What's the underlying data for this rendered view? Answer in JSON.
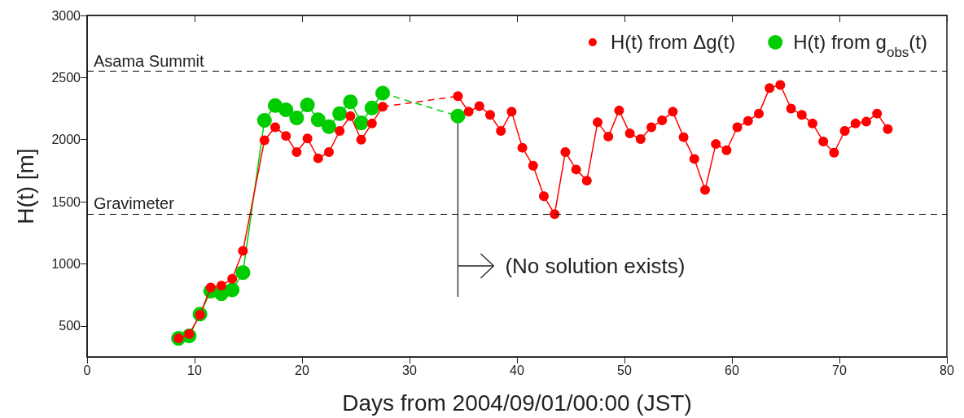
{
  "chart_data": {
    "type": "line",
    "xlabel": "Days from 2004/09/01/00:00 (JST)",
    "ylabel": "H(t) [m]",
    "xlim": [
      0,
      80
    ],
    "xticks": [
      0,
      10,
      20,
      30,
      40,
      50,
      60,
      70,
      80
    ],
    "ylim": [
      250,
      3000
    ],
    "yticks": [
      500,
      1000,
      1500,
      2000,
      2500,
      3000
    ],
    "grid": false,
    "legend": "top right",
    "marker": "circle",
    "line_style": "solid",
    "series": [
      {
        "name": "H(t) from Δg(t)",
        "color": "#ff0000",
        "x": [
          8.5,
          9.5,
          10.5,
          11.5,
          12.5,
          13.5,
          14.5,
          16.5,
          17.5,
          18.5,
          19.5,
          20.5,
          21.5,
          22.5,
          23.5,
          24.5,
          25.5,
          26.5,
          27.5,
          34.5,
          35.5,
          36.5,
          37.5,
          38.5,
          39.5,
          40.5,
          41.5,
          42.5,
          43.5,
          44.5,
          45.5,
          46.5,
          47.5,
          48.5,
          49.5,
          50.5,
          51.5,
          52.5,
          53.5,
          54.5,
          55.5,
          56.5,
          57.5,
          58.5,
          59.5,
          60.5,
          61.5,
          62.5,
          63.5,
          64.5,
          65.5,
          66.5,
          67.5,
          68.5,
          69.5,
          70.5,
          71.5,
          72.5,
          73.5,
          74.5
        ],
        "values": [
          400,
          435,
          590,
          810,
          825,
          880,
          1105,
          1995,
          2100,
          2030,
          1900,
          2010,
          1850,
          1900,
          2070,
          2190,
          2000,
          2130,
          2265,
          2350,
          2225,
          2270,
          2200,
          2070,
          2225,
          1935,
          1790,
          1545,
          1400,
          1900,
          1760,
          1670,
          2140,
          2025,
          2235,
          2050,
          2005,
          2100,
          2155,
          2225,
          2020,
          1845,
          1595,
          1965,
          1915,
          2100,
          2150,
          2210,
          2415,
          2440,
          2250,
          2200,
          2130,
          1985,
          1895,
          2070,
          2130,
          2145,
          2210,
          2085
        ]
      },
      {
        "name": "H(t) from g$_{obs}$(t)",
        "color": "#00cc00",
        "x": [
          8.5,
          9.5,
          10.5,
          11.5,
          12.5,
          13.5,
          14.5,
          16.5,
          17.5,
          18.5,
          19.5,
          20.5,
          21.5,
          22.5,
          23.5,
          24.5,
          25.5,
          26.5,
          27.5,
          34.5
        ],
        "values": [
          400,
          420,
          595,
          780,
          760,
          790,
          930,
          2155,
          2275,
          2240,
          2175,
          2280,
          2160,
          2105,
          2210,
          2305,
          2135,
          2255,
          2375,
          2190
        ]
      }
    ],
    "ref_lines": [
      {
        "axis": "y",
        "value": 2550,
        "label": "Asama Summit",
        "color": "#000000",
        "line_style": "dashed"
      },
      {
        "axis": "y",
        "value": 1400,
        "label": "Gravimeter",
        "color": "#000000",
        "line_style": "dashed"
      }
    ],
    "annotations": [
      "(No solution exists)"
    ]
  }
}
